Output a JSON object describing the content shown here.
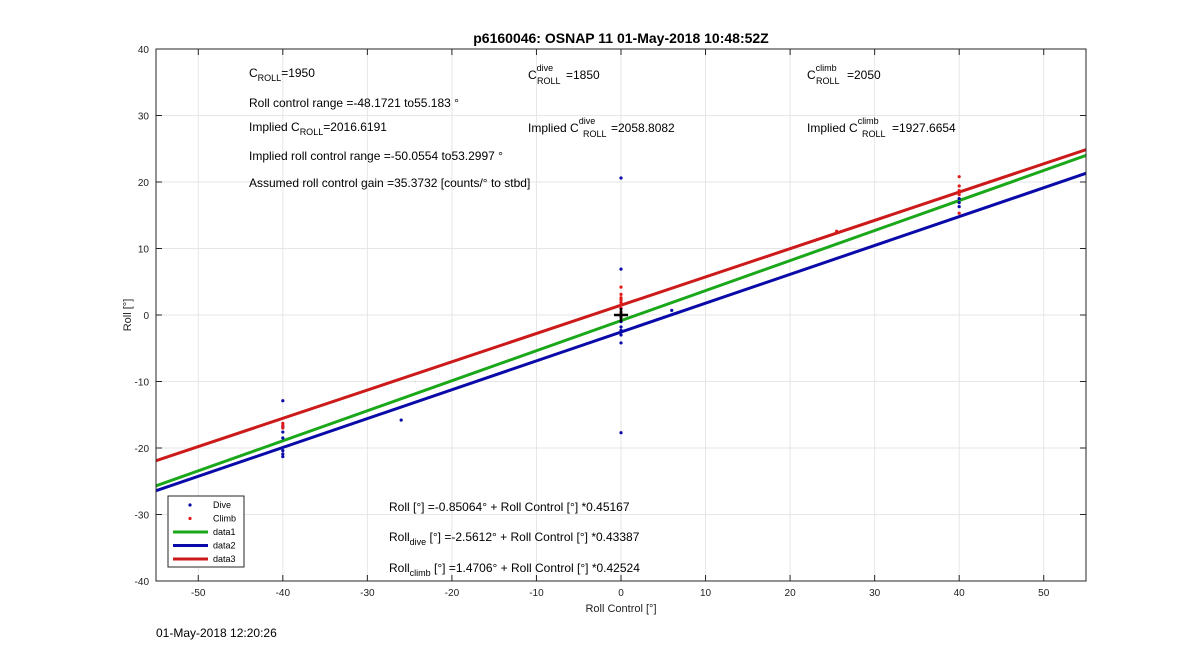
{
  "chart_data": {
    "type": "scatter",
    "title": "p6160046: OSNAP 11 01-May-2018 10:48:52Z",
    "xlabel": "Roll Control [°]",
    "ylabel": "Roll [°]",
    "xlim": [
      -55,
      55
    ],
    "ylim": [
      -40,
      40
    ],
    "xticks": [
      -50,
      -40,
      -30,
      -20,
      -10,
      0,
      10,
      20,
      30,
      40,
      50
    ],
    "yticks": [
      -40,
      -30,
      -20,
      -10,
      0,
      10,
      20,
      30,
      40
    ],
    "grid": true,
    "legend_position": "bottom-left",
    "series": [
      {
        "name": "Dive",
        "kind": "points",
        "color": "#0a0aa8",
        "x": [
          -40,
          -40,
          -40,
          -40,
          -40,
          -40,
          -40,
          -26,
          0,
          0,
          0,
          0,
          0,
          0,
          0,
          0,
          0,
          0,
          6,
          40,
          40,
          40
        ],
        "y": [
          -12.9,
          -16.8,
          -17.6,
          -18.5,
          -20.4,
          -20.9,
          -21.3,
          -15.8,
          20.6,
          6.9,
          1.0,
          -1.0,
          -1.8,
          -2.3,
          -3.0,
          -4.2,
          -17.7,
          -0.3,
          0.7,
          16.3,
          16.9,
          17.5
        ]
      },
      {
        "name": "Climb",
        "kind": "points",
        "color": "#e01b1b",
        "x": [
          -40,
          -40,
          -40,
          0,
          0,
          0,
          0,
          0,
          0,
          0,
          0,
          0,
          25.5,
          40,
          40,
          40,
          40,
          40
        ],
        "y": [
          -16.3,
          -16.6,
          -17.0,
          4.2,
          3.1,
          2.6,
          2.3,
          1.9,
          1.5,
          1.0,
          0.4,
          -0.2,
          12.6,
          20.8,
          19.4,
          18.7,
          18.1,
          15.3
        ]
      },
      {
        "name": "data1",
        "kind": "line",
        "color": "#1aa81a",
        "intercept": -0.85064,
        "slope": 0.45167
      },
      {
        "name": "data2",
        "kind": "line",
        "color": "#0a0aa8",
        "intercept": -2.5612,
        "slope": 0.43387
      },
      {
        "name": "data3",
        "kind": "line",
        "color": "#cc1a1a",
        "intercept": 1.4706,
        "slope": 0.42524
      }
    ],
    "marker": {
      "x": 0,
      "y": 0,
      "color": "#000000"
    },
    "annotations": {
      "c_roll": {
        "base": "C",
        "sub": "ROLL",
        "text": "=1950"
      },
      "c_roll_dive": {
        "base": "C",
        "sup": "dive",
        "sub": "ROLL",
        "text": "=1850"
      },
      "c_roll_climb": {
        "base": "C",
        "sup": "climb",
        "sub": "ROLL",
        "text": "=2050"
      },
      "roll_range": "Roll control range =-48.1721 to55.183 °",
      "implied_c_roll": {
        "pre": "Implied C",
        "sub": "ROLL",
        "text": "=2016.6191"
      },
      "implied_c_roll_dive": {
        "pre": "Implied C",
        "sup": "dive",
        "sub": "ROLL",
        "text": "=2058.8082"
      },
      "implied_c_roll_climb": {
        "pre": "Implied C",
        "sup": "climb",
        "sub": "ROLL",
        "text": "=1927.6654"
      },
      "implied_range": "Implied roll control range =-50.0554 to53.2997 °",
      "gain": "Assumed roll control gain =35.3732 [counts/° to stbd]",
      "fit_all": {
        "pre": "Roll [°] =-0.85064° + Roll Control [°] *0.45167"
      },
      "fit_dive": {
        "pre": "Roll",
        "sub": "dive",
        "text": " [°] =-2.5612° + Roll Control [°] *0.43387"
      },
      "fit_climb": {
        "pre": "Roll",
        "sub": "climb",
        "text": " [°] =1.4706° + Roll Control [°] *0.42524"
      }
    }
  },
  "footer": {
    "timestamp": "01-May-2018 12:20:26"
  }
}
